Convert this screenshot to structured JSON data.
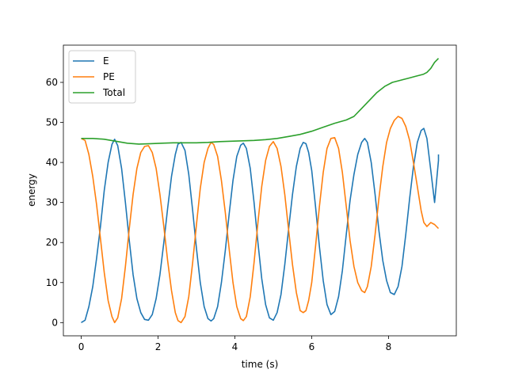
{
  "chart_data": {
    "type": "line",
    "title": "",
    "xlabel": "time (s)",
    "ylabel": "energy",
    "xlim": [
      -0.465,
      9.765
    ],
    "ylim": [
      -3.3,
      69.3
    ],
    "xticks": [
      0,
      2,
      4,
      6,
      8
    ],
    "yticks": [
      0,
      10,
      20,
      30,
      40,
      50,
      60
    ],
    "grid": false,
    "legend_position": "upper-left",
    "series": [
      {
        "name": "E",
        "color": "#1f77b4",
        "points": [
          [
            0.0,
            0.0
          ],
          [
            0.1,
            0.6
          ],
          [
            0.2,
            4.0
          ],
          [
            0.3,
            9.0
          ],
          [
            0.4,
            16.0
          ],
          [
            0.5,
            24.0
          ],
          [
            0.6,
            33.0
          ],
          [
            0.7,
            40.0
          ],
          [
            0.8,
            44.5
          ],
          [
            0.87,
            45.8
          ],
          [
            0.95,
            44.2
          ],
          [
            1.05,
            38.5
          ],
          [
            1.15,
            30.0
          ],
          [
            1.25,
            20.5
          ],
          [
            1.35,
            12.0
          ],
          [
            1.45,
            6.0
          ],
          [
            1.55,
            2.5
          ],
          [
            1.65,
            0.8
          ],
          [
            1.75,
            0.6
          ],
          [
            1.85,
            2.0
          ],
          [
            1.95,
            6.0
          ],
          [
            2.05,
            12.0
          ],
          [
            2.15,
            20.0
          ],
          [
            2.25,
            28.5
          ],
          [
            2.35,
            36.5
          ],
          [
            2.45,
            42.0
          ],
          [
            2.52,
            44.6
          ],
          [
            2.6,
            45.0
          ],
          [
            2.7,
            43.0
          ],
          [
            2.8,
            37.0
          ],
          [
            2.9,
            28.0
          ],
          [
            3.0,
            18.5
          ],
          [
            3.1,
            10.0
          ],
          [
            3.2,
            4.0
          ],
          [
            3.3,
            1.0
          ],
          [
            3.38,
            0.4
          ],
          [
            3.45,
            1.0
          ],
          [
            3.55,
            4.0
          ],
          [
            3.65,
            10.0
          ],
          [
            3.75,
            18.0
          ],
          [
            3.85,
            27.0
          ],
          [
            3.95,
            35.5
          ],
          [
            4.05,
            41.5
          ],
          [
            4.15,
            44.3
          ],
          [
            4.22,
            44.8
          ],
          [
            4.3,
            43.5
          ],
          [
            4.4,
            38.5
          ],
          [
            4.5,
            30.0
          ],
          [
            4.6,
            20.0
          ],
          [
            4.7,
            11.0
          ],
          [
            4.8,
            4.5
          ],
          [
            4.9,
            1.2
          ],
          [
            5.0,
            0.6
          ],
          [
            5.1,
            2.5
          ],
          [
            5.2,
            7.0
          ],
          [
            5.3,
            14.5
          ],
          [
            5.4,
            23.5
          ],
          [
            5.5,
            32.0
          ],
          [
            5.6,
            39.0
          ],
          [
            5.7,
            43.5
          ],
          [
            5.78,
            45.0
          ],
          [
            5.85,
            44.7
          ],
          [
            5.92,
            42.5
          ],
          [
            6.0,
            38.0
          ],
          [
            6.1,
            29.0
          ],
          [
            6.2,
            19.0
          ],
          [
            6.3,
            10.5
          ],
          [
            6.4,
            4.5
          ],
          [
            6.5,
            2.0
          ],
          [
            6.6,
            2.8
          ],
          [
            6.7,
            6.5
          ],
          [
            6.8,
            13.0
          ],
          [
            6.9,
            22.0
          ],
          [
            7.0,
            30.5
          ],
          [
            7.1,
            37.0
          ],
          [
            7.2,
            42.0
          ],
          [
            7.3,
            45.0
          ],
          [
            7.38,
            46.0
          ],
          [
            7.45,
            45.0
          ],
          [
            7.55,
            40.0
          ],
          [
            7.65,
            32.0
          ],
          [
            7.75,
            23.0
          ],
          [
            7.85,
            15.5
          ],
          [
            7.95,
            10.5
          ],
          [
            8.05,
            7.5
          ],
          [
            8.15,
            7.0
          ],
          [
            8.25,
            9.0
          ],
          [
            8.35,
            14.0
          ],
          [
            8.45,
            22.0
          ],
          [
            8.55,
            31.0
          ],
          [
            8.65,
            39.0
          ],
          [
            8.75,
            45.0
          ],
          [
            8.85,
            48.0
          ],
          [
            8.92,
            48.5
          ],
          [
            9.0,
            46.0
          ],
          [
            9.1,
            38.0
          ],
          [
            9.2,
            30.0
          ],
          [
            9.3,
            40.5
          ],
          [
            9.3,
            42.0
          ]
        ]
      },
      {
        "name": "PE",
        "color": "#ff7f0e",
        "points": [
          [
            0.0,
            46.0
          ],
          [
            0.1,
            45.5
          ],
          [
            0.2,
            42.0
          ],
          [
            0.3,
            36.5
          ],
          [
            0.4,
            29.5
          ],
          [
            0.5,
            21.0
          ],
          [
            0.6,
            12.5
          ],
          [
            0.7,
            5.5
          ],
          [
            0.8,
            1.5
          ],
          [
            0.87,
            0.0
          ],
          [
            0.95,
            1.2
          ],
          [
            1.05,
            6.0
          ],
          [
            1.15,
            14.0
          ],
          [
            1.25,
            23.5
          ],
          [
            1.35,
            32.0
          ],
          [
            1.45,
            38.5
          ],
          [
            1.55,
            42.5
          ],
          [
            1.65,
            44.0
          ],
          [
            1.75,
            44.2
          ],
          [
            1.85,
            42.5
          ],
          [
            1.95,
            38.5
          ],
          [
            2.05,
            32.0
          ],
          [
            2.15,
            24.0
          ],
          [
            2.25,
            15.5
          ],
          [
            2.35,
            8.0
          ],
          [
            2.45,
            2.5
          ],
          [
            2.52,
            0.5
          ],
          [
            2.6,
            0.0
          ],
          [
            2.7,
            1.5
          ],
          [
            2.8,
            6.5
          ],
          [
            2.9,
            15.0
          ],
          [
            3.0,
            24.5
          ],
          [
            3.1,
            33.5
          ],
          [
            3.2,
            40.0
          ],
          [
            3.3,
            43.5
          ],
          [
            3.38,
            45.0
          ],
          [
            3.45,
            44.5
          ],
          [
            3.55,
            41.5
          ],
          [
            3.65,
            35.5
          ],
          [
            3.75,
            27.5
          ],
          [
            3.85,
            18.5
          ],
          [
            3.95,
            10.0
          ],
          [
            4.05,
            4.0
          ],
          [
            4.15,
            1.0
          ],
          [
            4.22,
            0.5
          ],
          [
            4.3,
            1.5
          ],
          [
            4.4,
            6.5
          ],
          [
            4.5,
            15.0
          ],
          [
            4.6,
            25.0
          ],
          [
            4.7,
            34.0
          ],
          [
            4.8,
            40.5
          ],
          [
            4.9,
            44.0
          ],
          [
            5.0,
            45.2
          ],
          [
            5.1,
            43.5
          ],
          [
            5.2,
            39.0
          ],
          [
            5.3,
            32.0
          ],
          [
            5.4,
            23.0
          ],
          [
            5.5,
            14.5
          ],
          [
            5.6,
            7.5
          ],
          [
            5.7,
            3.0
          ],
          [
            5.78,
            2.5
          ],
          [
            5.85,
            3.0
          ],
          [
            5.92,
            5.5
          ],
          [
            6.0,
            10.0
          ],
          [
            6.1,
            19.0
          ],
          [
            6.2,
            29.0
          ],
          [
            6.3,
            37.5
          ],
          [
            6.4,
            43.5
          ],
          [
            6.5,
            46.0
          ],
          [
            6.6,
            46.2
          ],
          [
            6.7,
            43.5
          ],
          [
            6.8,
            37.5
          ],
          [
            6.9,
            29.0
          ],
          [
            7.0,
            20.5
          ],
          [
            7.1,
            14.0
          ],
          [
            7.2,
            10.0
          ],
          [
            7.3,
            8.0
          ],
          [
            7.38,
            7.5
          ],
          [
            7.45,
            9.0
          ],
          [
            7.55,
            14.0
          ],
          [
            7.65,
            22.0
          ],
          [
            7.75,
            31.0
          ],
          [
            7.85,
            39.0
          ],
          [
            7.95,
            45.0
          ],
          [
            8.05,
            48.5
          ],
          [
            8.15,
            50.5
          ],
          [
            8.25,
            51.5
          ],
          [
            8.35,
            51.0
          ],
          [
            8.45,
            49.0
          ],
          [
            8.55,
            45.5
          ],
          [
            8.65,
            40.0
          ],
          [
            8.75,
            34.0
          ],
          [
            8.85,
            28.0
          ],
          [
            8.92,
            25.0
          ],
          [
            9.0,
            24.0
          ],
          [
            9.1,
            25.0
          ],
          [
            9.2,
            24.5
          ],
          [
            9.3,
            23.5
          ]
        ]
      },
      {
        "name": "Total",
        "color": "#2ca02c",
        "points": [
          [
            0.0,
            46.0
          ],
          [
            0.3,
            46.0
          ],
          [
            0.6,
            45.8
          ],
          [
            0.9,
            45.3
          ],
          [
            1.2,
            44.8
          ],
          [
            1.5,
            44.6
          ],
          [
            1.8,
            44.7
          ],
          [
            2.1,
            44.8
          ],
          [
            2.4,
            44.9
          ],
          [
            2.7,
            44.9
          ],
          [
            3.0,
            44.9
          ],
          [
            3.3,
            45.0
          ],
          [
            3.6,
            45.2
          ],
          [
            3.9,
            45.3
          ],
          [
            4.2,
            45.4
          ],
          [
            4.5,
            45.5
          ],
          [
            4.8,
            45.7
          ],
          [
            5.1,
            46.0
          ],
          [
            5.4,
            46.5
          ],
          [
            5.7,
            47.0
          ],
          [
            6.0,
            47.8
          ],
          [
            6.3,
            48.8
          ],
          [
            6.6,
            49.8
          ],
          [
            6.9,
            50.6
          ],
          [
            7.1,
            51.5
          ],
          [
            7.3,
            53.5
          ],
          [
            7.5,
            55.5
          ],
          [
            7.7,
            57.5
          ],
          [
            7.9,
            59.0
          ],
          [
            8.1,
            60.0
          ],
          [
            8.3,
            60.5
          ],
          [
            8.5,
            61.0
          ],
          [
            8.7,
            61.5
          ],
          [
            8.9,
            62.0
          ],
          [
            9.0,
            62.5
          ],
          [
            9.1,
            63.5
          ],
          [
            9.2,
            65.0
          ],
          [
            9.3,
            66.0
          ]
        ]
      }
    ]
  }
}
